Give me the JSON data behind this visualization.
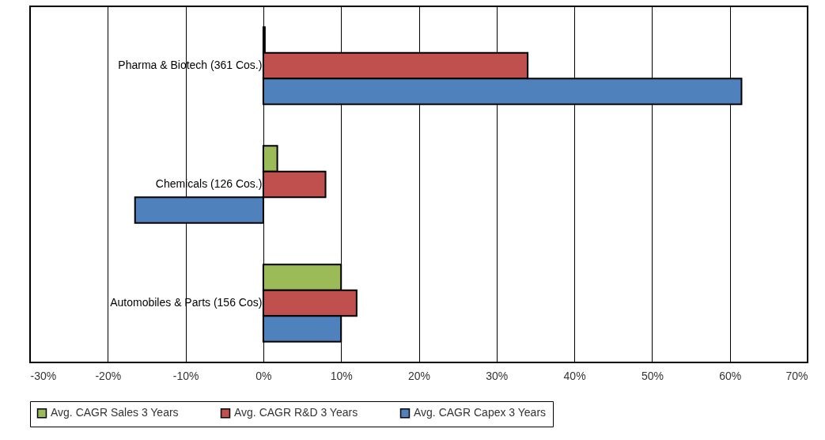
{
  "chart_data": {
    "type": "bar",
    "orientation": "horizontal",
    "categories": [
      "Pharma & Biotech (361 Cos.)",
      "Chemicals (126 Cos.)",
      "Automobiles & Parts (156 Cos)"
    ],
    "series": [
      {
        "name": "Avg. CAGR Sales 3 Years",
        "color": "#9bbb59",
        "values": [
          0.2,
          1.8,
          10
        ]
      },
      {
        "name": "Avg. CAGR R&D 3 Years",
        "color": "#c0504d",
        "values": [
          34,
          8,
          12
        ]
      },
      {
        "name": "Avg. CAGR Capex 3 Years",
        "color": "#4f81bd",
        "values": [
          61.5,
          -16.5,
          10
        ]
      }
    ],
    "xlim": [
      -30,
      70
    ],
    "xticks": [
      {
        "value": -30,
        "label": "-30%"
      },
      {
        "value": -20,
        "label": "-20%"
      },
      {
        "value": -10,
        "label": "-10%"
      },
      {
        "value": 0,
        "label": "0%"
      },
      {
        "value": 10,
        "label": "10%"
      },
      {
        "value": 20,
        "label": "20%"
      },
      {
        "value": 30,
        "label": "30%"
      },
      {
        "value": 40,
        "label": "40%"
      },
      {
        "value": 50,
        "label": "50%"
      },
      {
        "value": 60,
        "label": "60%"
      },
      {
        "value": 70,
        "label": "70%"
      }
    ],
    "grid": "x",
    "legend": "bottom"
  }
}
